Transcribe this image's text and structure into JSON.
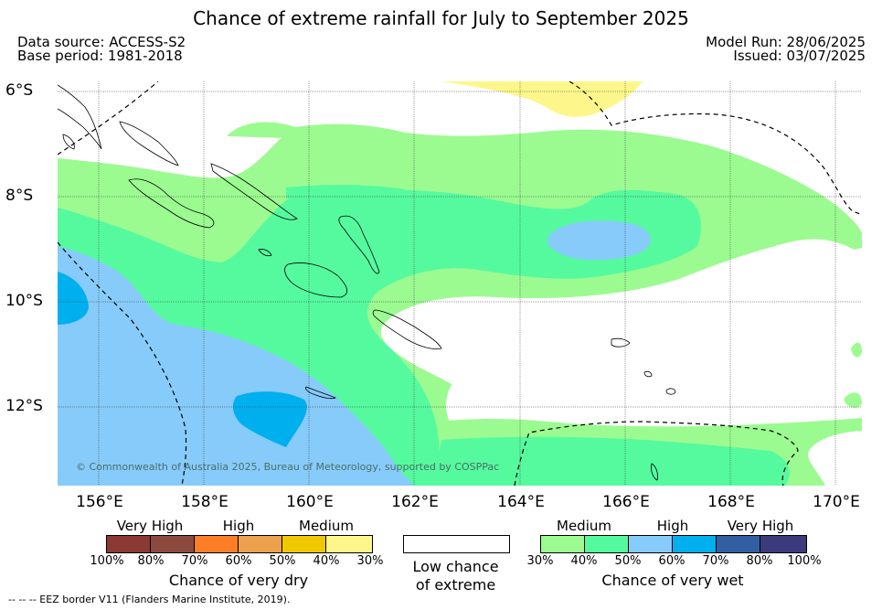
{
  "title": "Chance of extreme rainfall for July to September 2025",
  "meta": {
    "data_source": "Data source: ACCESS-S2",
    "base_period": "Base period: 1981-2018",
    "model_run": "Model Run: 28/06/2025",
    "issued": "Issued: 03/07/2025"
  },
  "map": {
    "lat_labels": [
      "6°S",
      "8°S",
      "10°S",
      "12°S"
    ],
    "lon_labels": [
      "156°E",
      "158°E",
      "160°E",
      "162°E",
      "164°E",
      "166°E",
      "168°E",
      "170°E"
    ],
    "copyright": "© Commonwealth of Australia 2025, Bureau of Meteorology, supported by COSPPac",
    "colors": {
      "medium_wet": "#9bfb91",
      "high_wet_40_50": "#55fa9e",
      "high_wet_50_60": "#87cbfa",
      "very_high_wet_60_70": "#00b0ee",
      "medium_dry": "#fdf78b",
      "low_chance": "#ffffff"
    }
  },
  "legend_dry": {
    "categories": [
      "Very High",
      "High",
      "Medium"
    ],
    "colors": [
      "#8a3a32",
      "#8c4a3e",
      "#fd7e27",
      "#eda04e",
      "#f0c800",
      "#fdf78b"
    ],
    "ticks": [
      "100%",
      "80%",
      "70%",
      "60%",
      "50%",
      "40%",
      "30%"
    ],
    "title": "Chance of very dry"
  },
  "legend_low": {
    "title_line1": "Low chance",
    "title_line2": "of extreme"
  },
  "legend_wet": {
    "categories": [
      "Medium",
      "High",
      "Very High"
    ],
    "colors": [
      "#9bfb91",
      "#55fa9e",
      "#87cbfa",
      "#00b0ee",
      "#325fa1",
      "#3c3a7c"
    ],
    "ticks": [
      "30%",
      "40%",
      "50%",
      "60%",
      "70%",
      "80%",
      "100%"
    ],
    "title": "Chance of very wet"
  },
  "footer": "--  --  -- EEZ border V11 (Flanders Marine Institute, 2019)."
}
